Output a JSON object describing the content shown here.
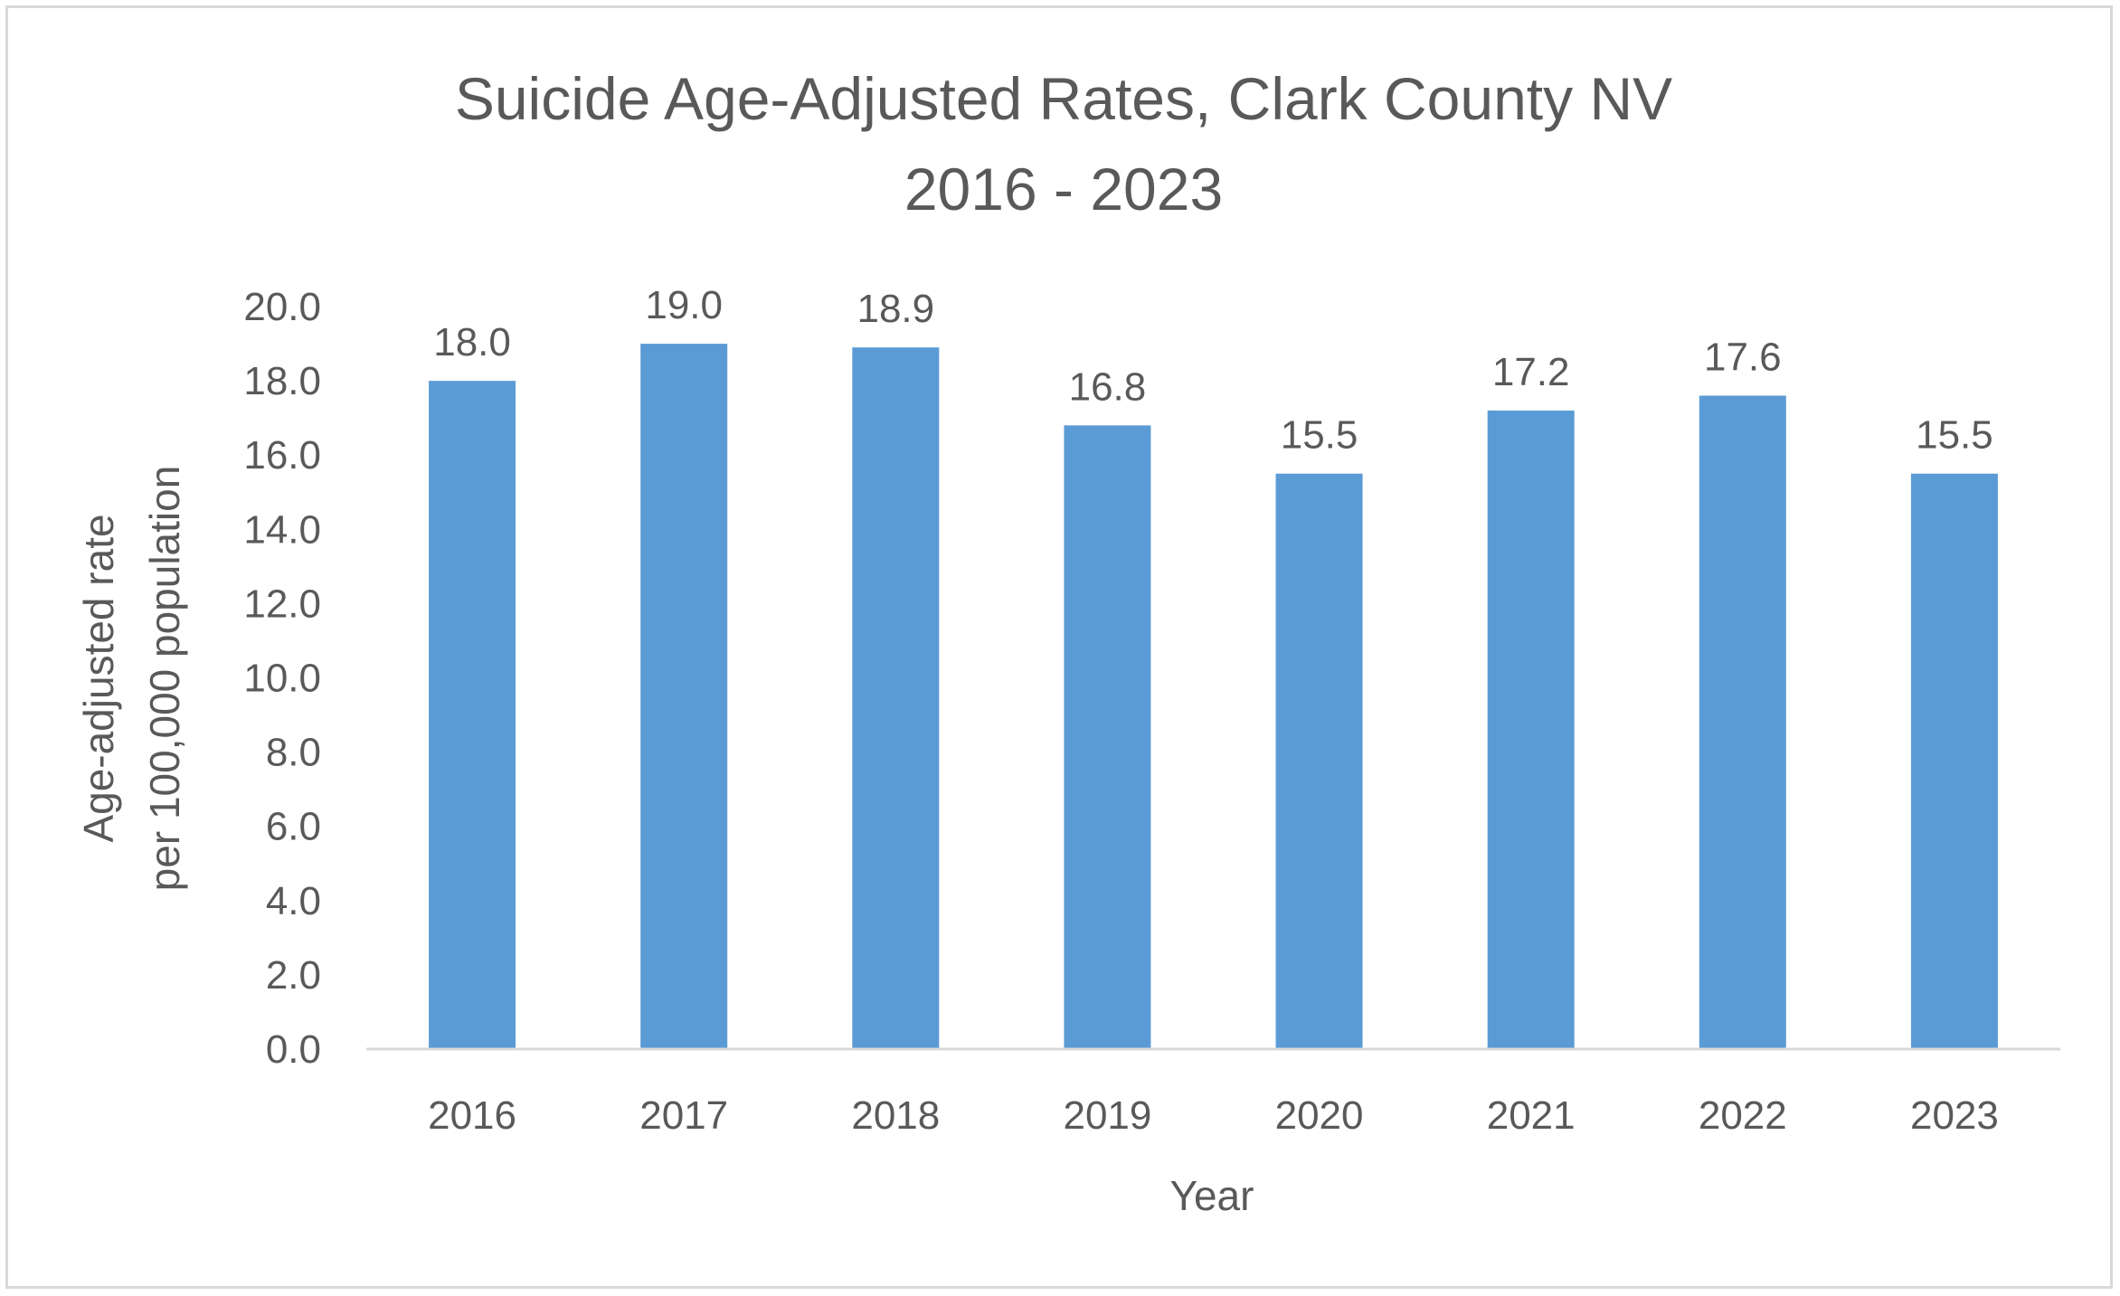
{
  "chart_data": {
    "type": "bar",
    "title_line1": "Suicide Age-Adjusted Rates, Clark County NV",
    "title_line2": "2016 - 2023",
    "ylabel_line1": "Age-adjusted rate",
    "ylabel_line2": "per 100,000 population",
    "xlabel": "Year",
    "categories": [
      "2016",
      "2017",
      "2018",
      "2019",
      "2020",
      "2021",
      "2022",
      "2023"
    ],
    "values": [
      18.0,
      19.0,
      18.9,
      16.8,
      15.5,
      17.2,
      17.6,
      15.5
    ],
    "value_labels": [
      "18.0",
      "19.0",
      "18.9",
      "16.8",
      "15.5",
      "17.2",
      "17.6",
      "15.5"
    ],
    "y_ticks": [
      "0.0",
      "2.0",
      "4.0",
      "6.0",
      "8.0",
      "10.0",
      "12.0",
      "14.0",
      "16.0",
      "18.0",
      "20.0"
    ],
    "ylim": [
      0,
      20
    ],
    "grid": false,
    "legend": "none",
    "bar_color": "#5b9bd5",
    "text_color": "#595959",
    "axis_color": "#d9d9d9"
  }
}
